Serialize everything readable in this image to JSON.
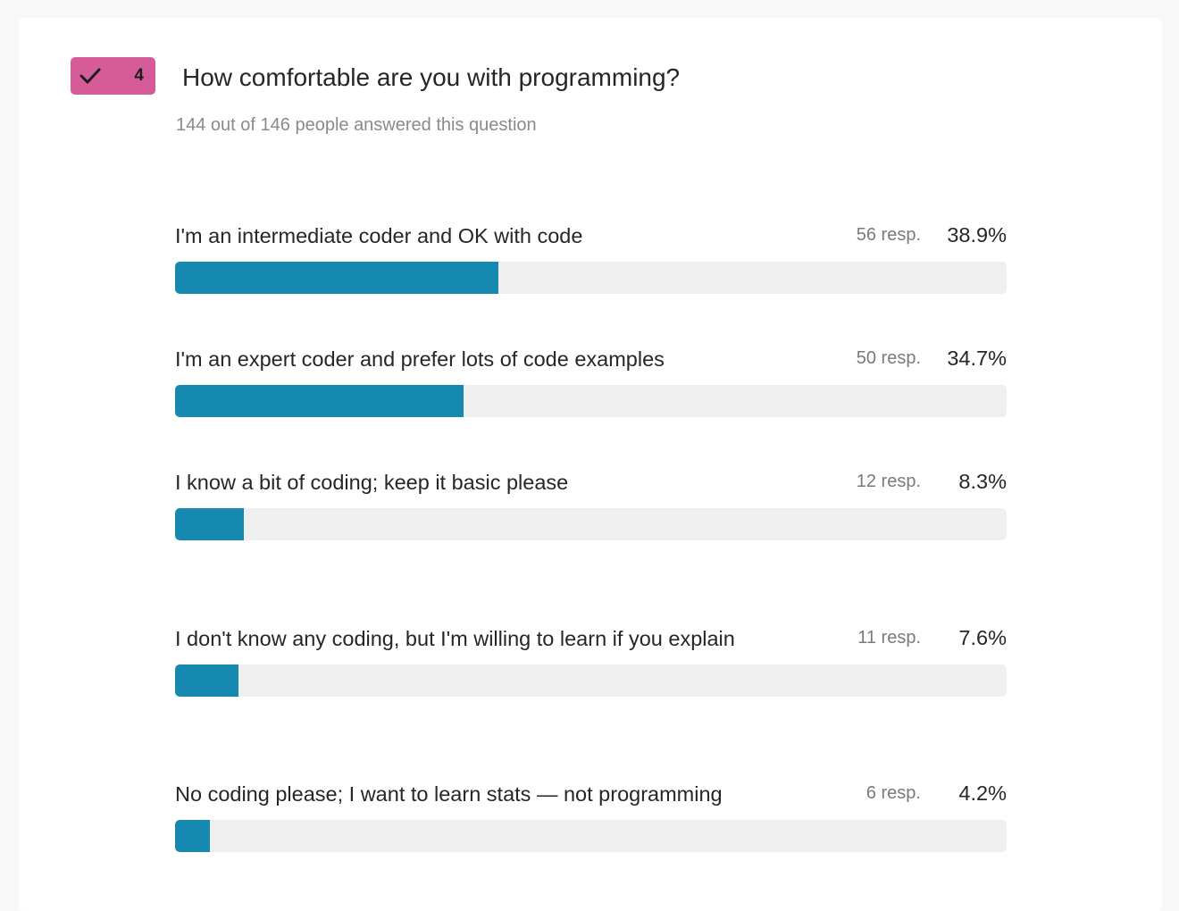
{
  "question": {
    "number": "4",
    "badge_icon": "checkmark-icon",
    "badge_color": "#d65c99",
    "title": "How comfortable are you with programming?",
    "subtitle": "144 out of 146 people answered this question"
  },
  "colors": {
    "bar_fill": "#1689b0",
    "bar_track": "#efefef"
  },
  "options": [
    {
      "label": "I'm an intermediate coder and OK with code",
      "responses": "56 resp.",
      "percent_label": "38.9%",
      "percent": 38.9
    },
    {
      "label": "I'm an expert coder and prefer lots of code examples",
      "responses": "50 resp.",
      "percent_label": "34.7%",
      "percent": 34.7
    },
    {
      "label": "I know a bit of coding; keep it basic please",
      "responses": "12 resp.",
      "percent_label": "8.3%",
      "percent": 8.3
    },
    {
      "label": "I don't know any coding, but I'm willing to learn if you explain",
      "responses": "11 resp.",
      "percent_label": "7.6%",
      "percent": 7.6
    },
    {
      "label": "No coding please; I want to learn stats — not programming",
      "responses": "6 resp.",
      "percent_label": "4.2%",
      "percent": 4.2
    }
  ]
}
